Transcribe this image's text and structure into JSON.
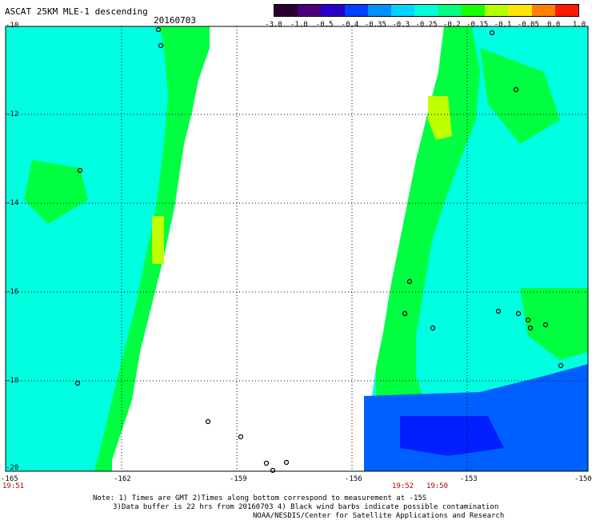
{
  "header": {
    "title": "ASCAT 25KM MLE-1 descending",
    "date": "20160703"
  },
  "colorbar": {
    "labels": [
      "-3.0",
      "-1.0",
      "-0.5",
      "-0.4",
      "-0.35",
      "-0.3",
      "-0.25",
      "-0.2",
      "-0.15",
      "-0.1",
      "-0.05",
      "0.0",
      "1.0"
    ],
    "colors": [
      "#2a0030",
      "#4b0079",
      "#2a00c8",
      "#0040ff",
      "#0090ff",
      "#00d4ff",
      "#00ffd8",
      "#00ff80",
      "#1aff00",
      "#b4ff00",
      "#ffe600",
      "#ff7f00",
      "#ff1a00"
    ]
  },
  "axes": {
    "lon_labels": [
      "-165",
      "-162",
      "-159",
      "-156",
      "-153",
      "-150"
    ],
    "lat_labels": [
      "-10",
      "-12",
      "-14",
      "-16",
      "-18",
      "-20"
    ]
  },
  "times": [
    "19:51",
    "19:52",
    "19:50"
  ],
  "notes": {
    "line1": "Note: 1) Times are GMT 2)Times along bottom correspond to measurement at -15S",
    "line2": "3)Data buffer is 22 hrs from 20160703 4) Black wind barbs indicate possible contamination",
    "line3": "NOAA/NESDIS/Center for Satellite Applications and Research"
  },
  "map_colors": {
    "cyan": "#00ffe0",
    "green": "#00ff40",
    "yellow_green": "#c0ff00",
    "blue": "#0060ff",
    "deep_blue": "#0020ff"
  }
}
